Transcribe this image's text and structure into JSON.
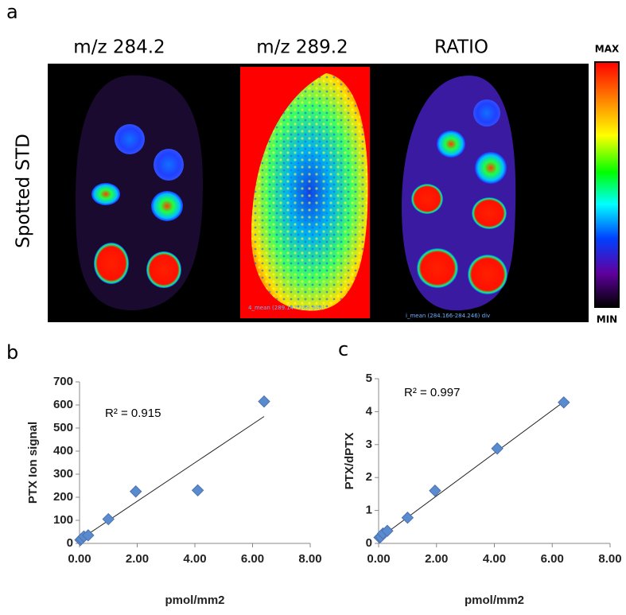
{
  "panel_a": {
    "label": "a",
    "titles": [
      "m/z 284.2",
      "m/z 289.2",
      "RATIO"
    ],
    "row_label": "Spotted  STD",
    "colorbar_max": "MAX",
    "colorbar_min": "MIN",
    "image_captions": [
      "4_mean (289.147-289.308)",
      "i_mean (284.166-284.246) div"
    ]
  },
  "chart_data": [
    {
      "type": "scatter",
      "label": "b",
      "ylabel": "PTX Ion signal",
      "xlabel": "pmol/mm2",
      "annotation": "R² = 0.915",
      "color": "#5b8bcf",
      "x": [
        0.03,
        0.07,
        0.15,
        0.3,
        1.0,
        1.95,
        4.1,
        6.4
      ],
      "values": [
        15,
        20,
        30,
        35,
        105,
        225,
        230,
        615
      ],
      "trendline": {
        "x": [
          0.03,
          6.4
        ],
        "y": [
          18,
          550
        ]
      },
      "xlim": [
        0,
        8
      ],
      "xticks": [
        {
          "value": 0,
          "label": "0.00"
        },
        {
          "value": 2,
          "label": "2.00"
        },
        {
          "value": 4,
          "label": "4.00"
        },
        {
          "value": 6,
          "label": "6.00"
        },
        {
          "value": 8,
          "label": "8.00"
        }
      ],
      "ylim": [
        0,
        700
      ],
      "yticks": [
        0,
        100,
        200,
        300,
        400,
        500,
        600,
        700
      ]
    },
    {
      "type": "scatter",
      "label": "c",
      "ylabel": "PTX/dPTX",
      "xlabel": "pmol/mm2",
      "annotation": "R² = 0.997",
      "color": "#5b8bcf",
      "x": [
        0.03,
        0.07,
        0.15,
        0.3,
        1.0,
        1.95,
        4.1,
        6.4
      ],
      "values": [
        0.18,
        0.2,
        0.3,
        0.38,
        0.78,
        1.6,
        2.88,
        4.28
      ],
      "trendline": {
        "x": [
          0.03,
          6.4
        ],
        "y": [
          0.16,
          4.3
        ]
      },
      "xlim": [
        0,
        8
      ],
      "xticks": [
        {
          "value": 0,
          "label": "0.00"
        },
        {
          "value": 2,
          "label": "2.00"
        },
        {
          "value": 4,
          "label": "4.00"
        },
        {
          "value": 6,
          "label": "6.00"
        },
        {
          "value": 8,
          "label": "8.00"
        }
      ],
      "ylim": [
        0,
        5
      ],
      "yticks": [
        0,
        1,
        2,
        3,
        4,
        5
      ]
    }
  ]
}
